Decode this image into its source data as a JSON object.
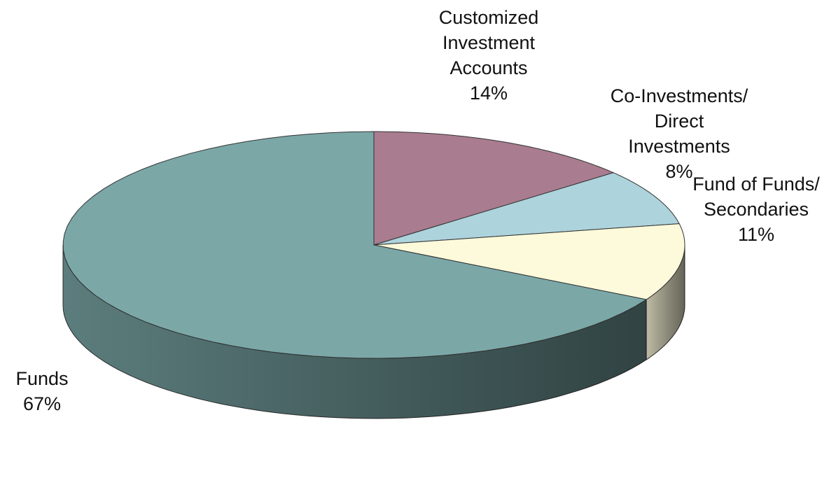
{
  "chart_data": {
    "type": "pie",
    "categories": [
      "Customized\nInvestment\nAccounts",
      "Co-Investments/\nDirect\nInvestments",
      "Fund of Funds/\nSecondaries",
      "Funds"
    ],
    "values": [
      14,
      8,
      11,
      67
    ],
    "value_labels": [
      "14%",
      "8%",
      "11%",
      "67%"
    ],
    "colors": [
      "#a97c8f",
      "#add3dc",
      "#fdfadb",
      "#7ba7a7"
    ]
  }
}
